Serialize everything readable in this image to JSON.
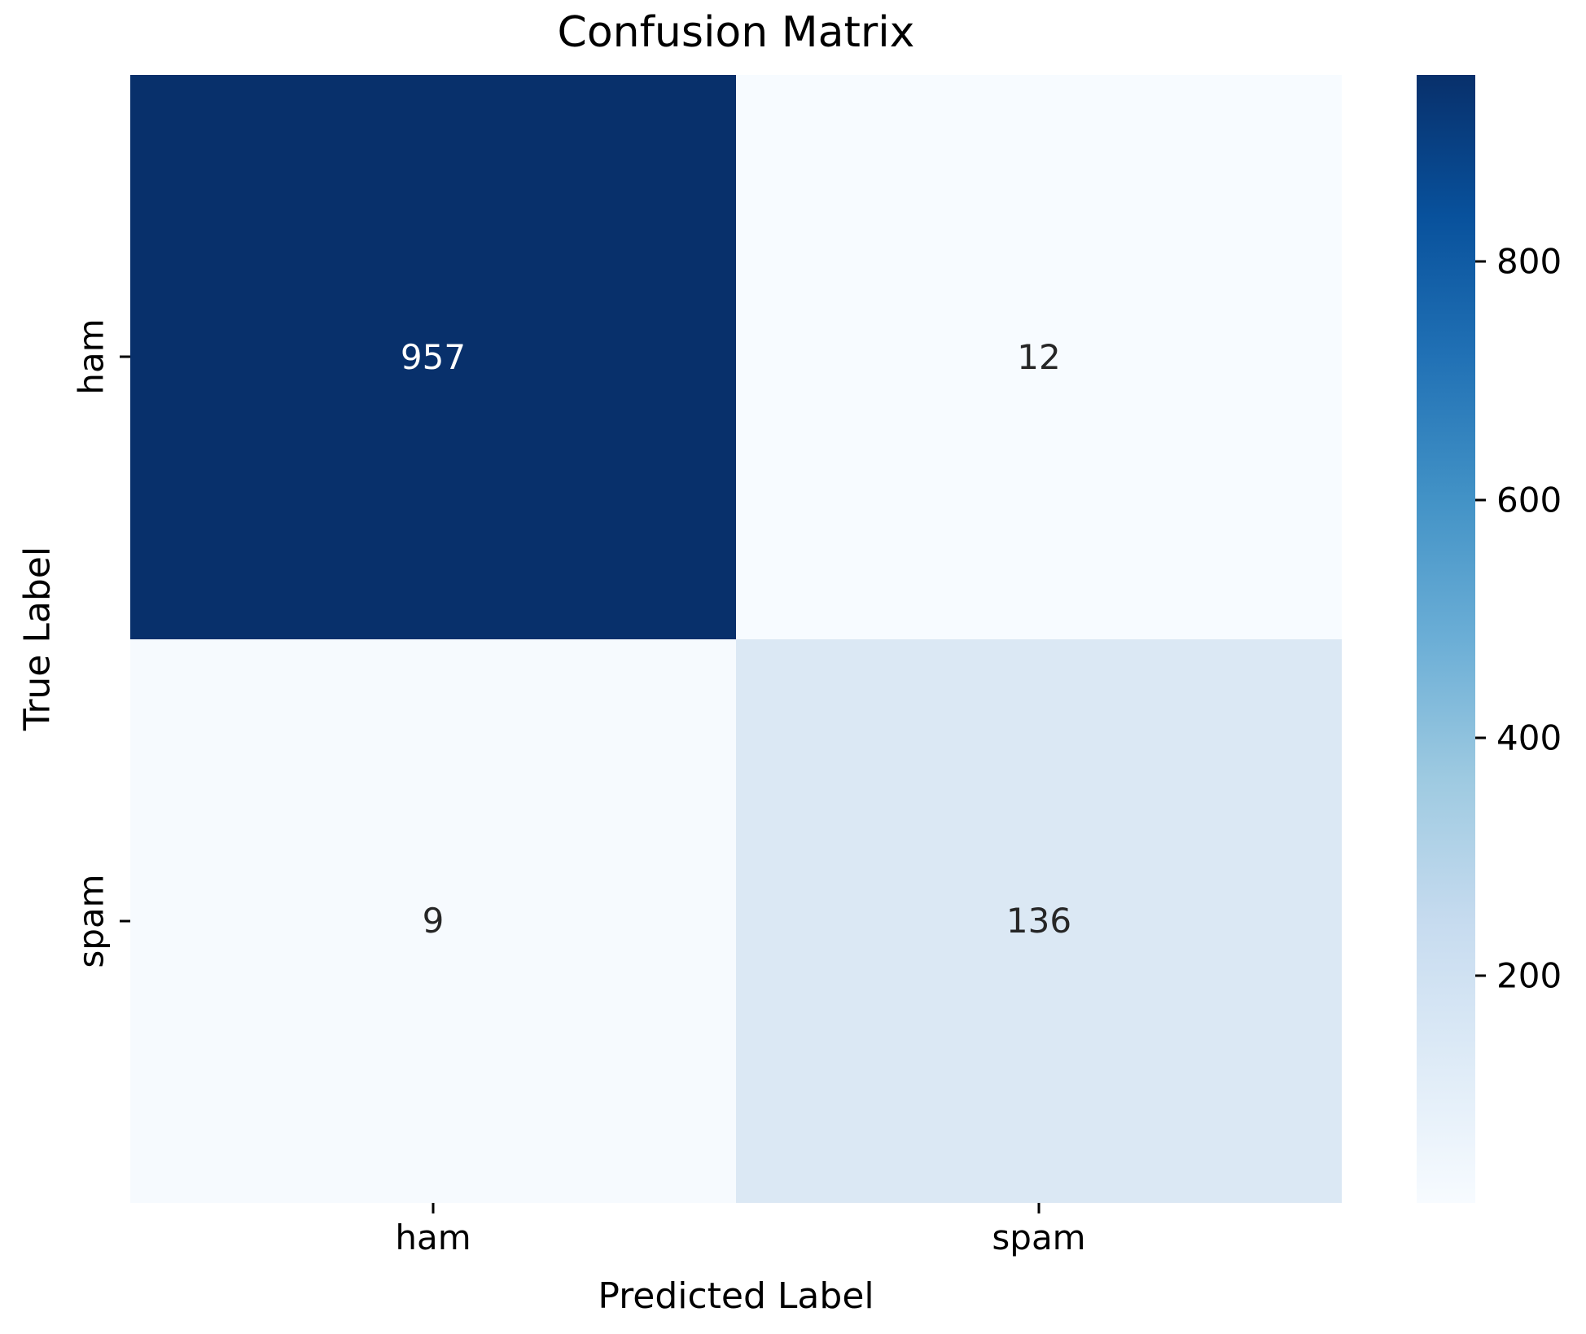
{
  "chart_data": {
    "type": "heatmap",
    "title": "Confusion Matrix",
    "xlabel": "Predicted Label",
    "ylabel": "True Label",
    "x_categories": [
      "ham",
      "spam"
    ],
    "y_categories": [
      "ham",
      "spam"
    ],
    "matrix": [
      [
        957,
        12
      ],
      [
        9,
        136
      ]
    ],
    "vmin": 9,
    "vmax": 957,
    "colormap": "Blues",
    "cell_colors": [
      [
        "#08306b",
        "#f7fbff"
      ],
      [
        "#f6fafe",
        "#dbe8f4"
      ]
    ],
    "cell_text_colors": [
      [
        "#ffffff",
        "#262626"
      ],
      [
        "#262626",
        "#262626"
      ]
    ],
    "colorbar_position": "right",
    "colorbar_ticks": [
      200,
      400,
      600,
      800
    ],
    "colorbar_gradient_top_to_bottom": [
      "#08306b",
      "#08519c",
      "#2171b5",
      "#4292c6",
      "#6baed6",
      "#9ecae1",
      "#c6dbef",
      "#deebf7",
      "#f7fbff"
    ],
    "background_color": "#ffffff",
    "tick_color": "#000000",
    "grid": false
  }
}
